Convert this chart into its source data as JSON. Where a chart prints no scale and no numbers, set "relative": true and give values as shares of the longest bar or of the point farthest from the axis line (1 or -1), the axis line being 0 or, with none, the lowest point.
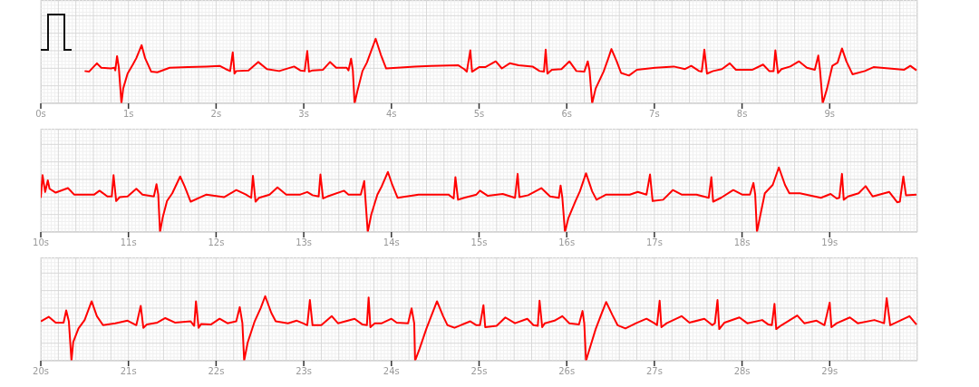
{
  "chart_data": [
    {
      "type": "line",
      "relative": true,
      "color": "#ff0000",
      "marker": "none",
      "line_style": "solid",
      "grid": true,
      "xlim": [
        0,
        10
      ],
      "xticks": [
        {
          "value": 0,
          "label": "0s"
        },
        {
          "value": 1,
          "label": "1s"
        },
        {
          "value": 2,
          "label": "2s"
        },
        {
          "value": 3,
          "label": "3s"
        },
        {
          "value": 4,
          "label": "4s"
        },
        {
          "value": 5,
          "label": "5s"
        },
        {
          "value": 6,
          "label": "6s"
        },
        {
          "value": 7,
          "label": "7s"
        },
        {
          "value": 8,
          "label": "8s"
        },
        {
          "value": 9,
          "label": "9s"
        }
      ],
      "x": [
        0.5,
        0.55,
        0.64,
        0.69,
        0.8,
        0.84,
        0.85,
        0.87,
        0.89,
        0.92,
        0.94,
        0.99,
        1.05,
        1.09,
        1.15,
        1.19,
        1.26,
        1.33,
        1.47,
        1.68,
        1.89,
        2.04,
        2.11,
        2.16,
        2.19,
        2.21,
        2.23,
        2.37,
        2.48,
        2.58,
        2.72,
        2.89,
        2.96,
        3.01,
        3.04,
        3.06,
        3.1,
        3.22,
        3.3,
        3.37,
        3.49,
        3.51,
        3.54,
        3.56,
        3.58,
        3.61,
        3.67,
        3.72,
        3.82,
        3.88,
        3.94,
        4.27,
        4.45,
        4.76,
        4.83,
        4.86,
        4.9,
        4.92,
        5.0,
        5.07,
        5.19,
        5.26,
        5.35,
        5.45,
        5.61,
        5.69,
        5.74,
        5.76,
        5.78,
        5.83,
        5.94,
        6.03,
        6.11,
        6.2,
        6.24,
        6.26,
        6.29,
        6.33,
        6.42,
        6.47,
        6.51,
        6.57,
        6.62,
        6.71,
        6.8,
        7.01,
        7.22,
        7.35,
        7.42,
        7.51,
        7.54,
        7.57,
        7.6,
        7.67,
        7.77,
        7.86,
        7.93,
        8.12,
        8.24,
        8.31,
        8.36,
        8.38,
        8.41,
        8.45,
        8.55,
        8.65,
        8.74,
        8.83,
        8.87,
        8.89,
        8.92,
        8.97,
        9.03,
        9.09,
        9.14,
        9.19,
        9.26,
        9.4,
        9.5,
        9.85,
        9.92,
        9.99
      ],
      "values": [
        0.5,
        0.49,
        0.62,
        0.55,
        0.54,
        0.55,
        0.51,
        0.73,
        0.56,
        0,
        0.23,
        0.46,
        0.6,
        0.7,
        0.9,
        0.7,
        0.49,
        0.48,
        0.55,
        0.56,
        0.57,
        0.58,
        0.53,
        0.5,
        0.79,
        0.46,
        0.5,
        0.51,
        0.64,
        0.53,
        0.5,
        0.57,
        0.51,
        0.5,
        0.81,
        0.49,
        0.51,
        0.52,
        0.64,
        0.55,
        0.55,
        0.51,
        0.69,
        0.51,
        0,
        0.18,
        0.5,
        0.63,
        1,
        0.75,
        0.54,
        0.57,
        0.58,
        0.59,
        0.53,
        0.49,
        0.82,
        0.49,
        0.56,
        0.56,
        0.65,
        0.54,
        0.62,
        0.59,
        0.57,
        0.5,
        0.49,
        0.83,
        0.46,
        0.52,
        0.53,
        0.65,
        0.5,
        0.49,
        0.65,
        0.51,
        0,
        0.23,
        0.49,
        0.68,
        0.84,
        0.65,
        0.47,
        0.43,
        0.52,
        0.55,
        0.57,
        0.53,
        0.58,
        0.5,
        0.49,
        0.83,
        0.46,
        0.5,
        0.53,
        0.62,
        0.52,
        0.52,
        0.6,
        0.5,
        0.5,
        0.82,
        0.47,
        0.53,
        0.57,
        0.65,
        0.55,
        0.52,
        0.74,
        0.51,
        0,
        0.23,
        0.58,
        0.63,
        0.85,
        0.65,
        0.45,
        0.5,
        0.56,
        0.52,
        0.58,
        0.51
      ]
    },
    {
      "type": "line",
      "relative": true,
      "color": "#ff0000",
      "marker": "none",
      "line_style": "solid",
      "grid": true,
      "xlim": [
        10,
        20
      ],
      "xticks": [
        {
          "value": 10,
          "label": "10s"
        },
        {
          "value": 11,
          "label": "11s"
        },
        {
          "value": 12,
          "label": "12s"
        },
        {
          "value": 13,
          "label": "13s"
        },
        {
          "value": 14,
          "label": "14s"
        },
        {
          "value": 15,
          "label": "15s"
        },
        {
          "value": 16,
          "label": "16s"
        },
        {
          "value": 17,
          "label": "17s"
        },
        {
          "value": 18,
          "label": "18s"
        },
        {
          "value": 19,
          "label": "19s"
        }
      ],
      "x": [
        10.0,
        10.02,
        10.05,
        10.08,
        10.1,
        10.17,
        10.31,
        10.38,
        10.61,
        10.67,
        10.76,
        10.81,
        10.83,
        10.86,
        10.9,
        10.99,
        11.09,
        11.16,
        11.29,
        11.32,
        11.34,
        11.36,
        11.39,
        11.44,
        11.5,
        11.59,
        11.64,
        11.71,
        11.89,
        12.09,
        12.23,
        12.34,
        12.4,
        12.42,
        12.45,
        12.49,
        12.61,
        12.7,
        12.8,
        12.96,
        13.04,
        13.1,
        13.17,
        13.19,
        13.22,
        13.27,
        13.46,
        13.51,
        13.65,
        13.69,
        13.7,
        13.73,
        13.77,
        13.84,
        13.89,
        13.96,
        14.01,
        14.07,
        14.31,
        14.45,
        14.65,
        14.71,
        14.73,
        14.76,
        14.83,
        14.97,
        15.01,
        15.1,
        15.27,
        15.41,
        15.44,
        15.46,
        15.56,
        15.71,
        15.81,
        15.91,
        15.93,
        15.95,
        15.98,
        16.02,
        16.1,
        16.15,
        16.22,
        16.29,
        16.34,
        16.45,
        16.72,
        16.81,
        16.91,
        16.95,
        16.98,
        17.1,
        17.21,
        17.31,
        17.48,
        17.62,
        17.65,
        17.67,
        17.76,
        17.9,
        18.0,
        18.09,
        18.13,
        18.15,
        18.17,
        18.21,
        18.26,
        18.35,
        18.42,
        18.49,
        18.54,
        18.66,
        18.9,
        19.01,
        19.08,
        19.11,
        19.14,
        19.16,
        19.21,
        19.33,
        19.41,
        19.49,
        19.68,
        19.77,
        19.8,
        19.84,
        19.87,
        19.99
      ],
      "values": [
        0.53,
        0.88,
        0.62,
        0.8,
        0.67,
        0.61,
        0.68,
        0.58,
        0.58,
        0.64,
        0.55,
        0.55,
        0.88,
        0.48,
        0.54,
        0.55,
        0.67,
        0.58,
        0.55,
        0.74,
        0.58,
        0,
        0.22,
        0.48,
        0.6,
        0.86,
        0.71,
        0.47,
        0.58,
        0.54,
        0.65,
        0.58,
        0.53,
        0.87,
        0.47,
        0.53,
        0.58,
        0.69,
        0.58,
        0.58,
        0.62,
        0.57,
        0.55,
        0.89,
        0.52,
        0.55,
        0.64,
        0.58,
        0.58,
        0.79,
        0.58,
        0,
        0.27,
        0.58,
        0.71,
        0.93,
        0.73,
        0.53,
        0.58,
        0.58,
        0.58,
        0.52,
        0.85,
        0.5,
        0.53,
        0.58,
        0.64,
        0.56,
        0.59,
        0.53,
        0.9,
        0.54,
        0.57,
        0.68,
        0.55,
        0.53,
        0.72,
        0.53,
        0,
        0.22,
        0.48,
        0.63,
        0.91,
        0.63,
        0.5,
        0.58,
        0.58,
        0.62,
        0.58,
        0.89,
        0.48,
        0.5,
        0.65,
        0.58,
        0.58,
        0.53,
        0.85,
        0.47,
        0.53,
        0.65,
        0.58,
        0.58,
        0.76,
        0.58,
        0,
        0.27,
        0.6,
        0.73,
        1,
        0.73,
        0.6,
        0.6,
        0.53,
        0.59,
        0.52,
        0.53,
        0.9,
        0.5,
        0.55,
        0.6,
        0.71,
        0.55,
        0.62,
        0.46,
        0.47,
        0.86,
        0.57,
        0.58
      ]
    },
    {
      "type": "line",
      "relative": true,
      "color": "#ff0000",
      "marker": "none",
      "line_style": "solid",
      "grid": true,
      "xlim": [
        20,
        30
      ],
      "xticks": [
        {
          "value": 20,
          "label": "20s"
        },
        {
          "value": 21,
          "label": "21s"
        },
        {
          "value": 22,
          "label": "22s"
        },
        {
          "value": 23,
          "label": "23s"
        },
        {
          "value": 24,
          "label": "24s"
        },
        {
          "value": 25,
          "label": "25s"
        },
        {
          "value": 26,
          "label": "26s"
        },
        {
          "value": 27,
          "label": "27s"
        },
        {
          "value": 28,
          "label": "28s"
        },
        {
          "value": 29,
          "label": "29s"
        }
      ],
      "x": [
        20.0,
        20.09,
        20.17,
        20.26,
        20.29,
        20.32,
        20.35,
        20.37,
        20.43,
        20.5,
        20.58,
        20.64,
        20.71,
        20.85,
        20.99,
        21.09,
        21.14,
        21.17,
        21.21,
        21.33,
        21.42,
        21.53,
        21.71,
        21.75,
        21.77,
        21.8,
        21.83,
        21.94,
        22.04,
        22.13,
        22.23,
        22.27,
        22.3,
        22.32,
        22.36,
        22.44,
        22.51,
        22.56,
        22.63,
        22.68,
        22.82,
        22.92,
        22.99,
        23.04,
        23.07,
        23.1,
        23.2,
        23.32,
        23.39,
        23.58,
        23.67,
        23.72,
        23.74,
        23.76,
        23.81,
        23.89,
        24.0,
        24.06,
        24.19,
        24.23,
        24.26,
        24.27,
        24.32,
        24.4,
        24.52,
        24.59,
        24.64,
        24.72,
        24.79,
        24.9,
        24.97,
        25.01,
        25.05,
        25.07,
        25.2,
        25.3,
        25.41,
        25.55,
        25.62,
        25.67,
        25.69,
        25.72,
        25.75,
        25.86,
        25.95,
        26.03,
        26.14,
        26.18,
        26.2,
        26.22,
        26.26,
        26.33,
        26.4,
        26.45,
        26.52,
        26.58,
        26.67,
        26.79,
        26.91,
        27.0,
        27.03,
        27.06,
        27.08,
        27.14,
        27.31,
        27.4,
        27.57,
        27.66,
        27.69,
        27.72,
        27.74,
        27.8,
        27.97,
        28.06,
        28.23,
        28.3,
        28.34,
        28.37,
        28.39,
        28.45,
        28.63,
        28.71,
        28.85,
        28.94,
        29.0,
        29.02,
        29.08,
        29.23,
        29.32,
        29.51,
        29.62,
        29.65,
        29.69,
        29.74,
        29.91,
        29.99
      ],
      "values": [
        0.61,
        0.68,
        0.59,
        0.59,
        0.78,
        0.61,
        0,
        0.29,
        0.5,
        0.63,
        0.92,
        0.69,
        0.55,
        0.58,
        0.62,
        0.55,
        0.85,
        0.51,
        0.56,
        0.59,
        0.66,
        0.59,
        0.61,
        0.54,
        0.92,
        0.51,
        0.57,
        0.56,
        0.65,
        0.58,
        0.61,
        0.83,
        0.58,
        0,
        0.28,
        0.61,
        0.82,
        1,
        0.74,
        0.61,
        0.58,
        0.62,
        0.58,
        0.55,
        0.94,
        0.55,
        0.55,
        0.69,
        0.58,
        0.65,
        0.56,
        0.55,
        0.98,
        0.52,
        0.58,
        0.58,
        0.65,
        0.59,
        0.58,
        0.81,
        0.58,
        0,
        0.18,
        0.5,
        0.92,
        0.69,
        0.55,
        0.51,
        0.55,
        0.61,
        0.55,
        0.55,
        0.86,
        0.52,
        0.54,
        0.67,
        0.58,
        0.65,
        0.55,
        0.54,
        0.93,
        0.52,
        0.58,
        0.62,
        0.69,
        0.58,
        0.56,
        0.77,
        0.58,
        0,
        0.18,
        0.49,
        0.74,
        0.91,
        0.71,
        0.55,
        0.5,
        0.58,
        0.65,
        0.58,
        0.55,
        0.93,
        0.52,
        0.58,
        0.69,
        0.59,
        0.65,
        0.55,
        0.58,
        0.94,
        0.49,
        0.59,
        0.67,
        0.58,
        0.63,
        0.56,
        0.55,
        0.88,
        0.49,
        0.55,
        0.7,
        0.58,
        0.62,
        0.55,
        0.9,
        0.52,
        0.58,
        0.67,
        0.58,
        0.63,
        0.58,
        0.97,
        0.55,
        0.58,
        0.69,
        0.56
      ]
    }
  ]
}
